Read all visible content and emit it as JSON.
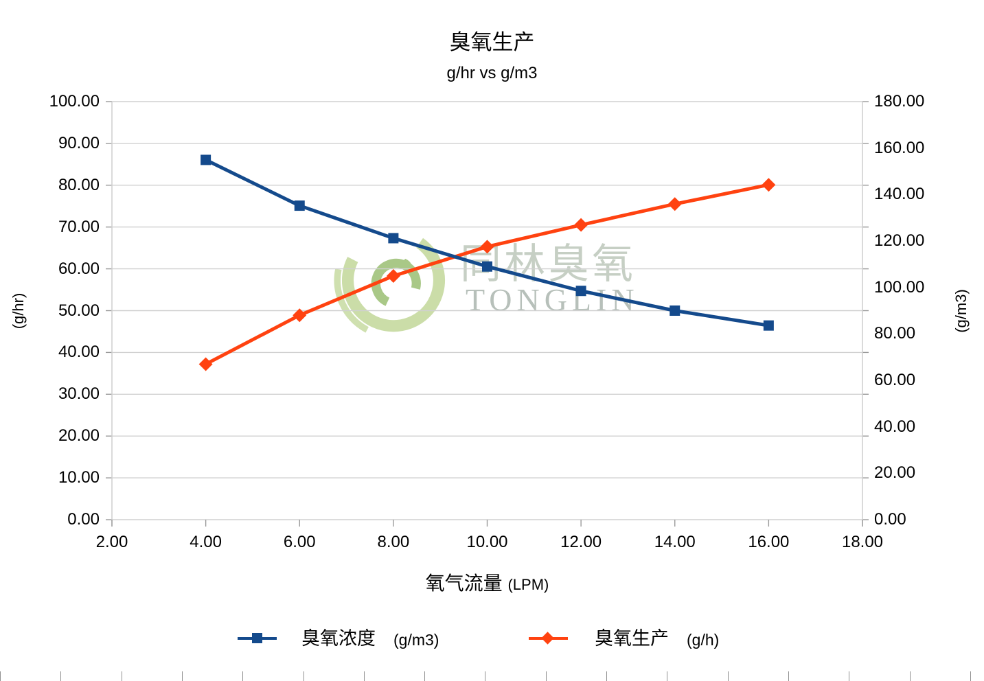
{
  "title": "臭氧生产",
  "subtitle": "g/hr vs g/m3",
  "watermark": {
    "cn": "同林臭氧",
    "en": "TONGLIN"
  },
  "axes": {
    "x_title": "氧气流量",
    "x_title_unit": "(LPM)",
    "left_title": "(g/hr)",
    "right_title": "(g/m3)"
  },
  "legend": [
    {
      "label": "臭氧浓度",
      "unit": "(g/m3)",
      "marker": "square",
      "color": "#144a8c"
    },
    {
      "label": "臭氧生产",
      "unit": "(g/h)",
      "marker": "diamond",
      "color": "#ff4210"
    }
  ],
  "chart_data": {
    "type": "line",
    "title": "臭氧生产",
    "subtitle": "g/hr vs g/m3",
    "xlabel": "氧气流量 (LPM)",
    "ylabel_left": "(g/hr)",
    "ylabel_right": "(g/m3)",
    "x": [
      4,
      6,
      8,
      10,
      12,
      14,
      16
    ],
    "series": [
      {
        "name": "臭氧浓度 (g/m3)",
        "axis": "right",
        "marker": "square",
        "color": "#144a8c",
        "values": [
          154.9,
          135.2,
          121.2,
          109.0,
          98.5,
          90.0,
          83.6
        ]
      },
      {
        "name": "臭氧生产 (g/h)",
        "axis": "left",
        "marker": "diamond",
        "color": "#ff4210",
        "values": [
          37.2,
          48.9,
          58.3,
          65.3,
          70.5,
          75.5,
          80.1
        ]
      }
    ],
    "x_range": [
      2,
      18
    ],
    "left_range": [
      0,
      100
    ],
    "right_range": [
      0,
      180
    ],
    "x_tick_labels": [
      "2.00",
      "4.00",
      "6.00",
      "8.00",
      "10.00",
      "12.00",
      "14.00",
      "16.00",
      "18.00"
    ],
    "left_tick_labels": [
      "0.00",
      "10.00",
      "20.00",
      "30.00",
      "40.00",
      "50.00",
      "60.00",
      "70.00",
      "80.00",
      "90.00",
      "100.00"
    ],
    "right_tick_labels": [
      "0.00",
      "20.00",
      "40.00",
      "60.00",
      "80.00",
      "100.00",
      "120.00",
      "140.00",
      "160.00",
      "180.00"
    ],
    "grid": "horizontal",
    "grid_color": "#d0d0d0",
    "legend_position": "bottom"
  }
}
